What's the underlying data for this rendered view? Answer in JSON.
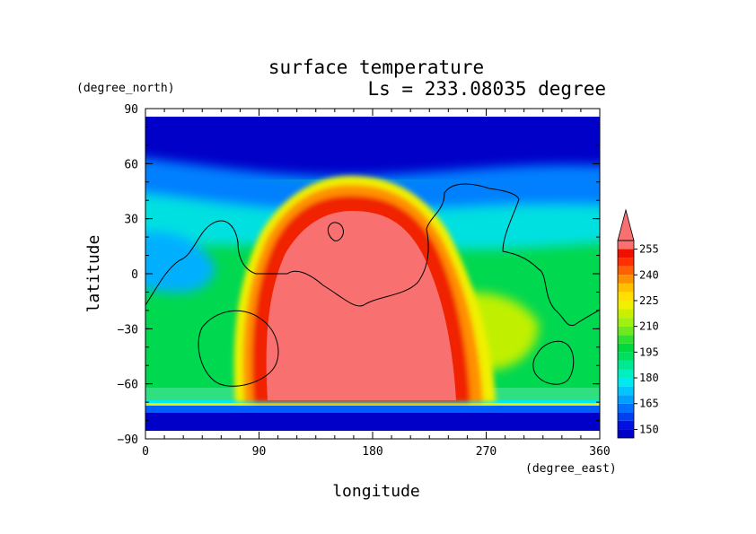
{
  "chart_data": {
    "type": "heatmap",
    "title": "surface temperature",
    "subtitle": "Ls = 233.08035 degree",
    "xlabel": "longitude",
    "ylabel": "latitude",
    "x_unit": "(degree_east)",
    "y_unit": "(degree_north)",
    "xlim": [
      0,
      360
    ],
    "ylim": [
      -90,
      90
    ],
    "x_ticks": [
      "0",
      "90",
      "180",
      "270",
      "360"
    ],
    "y_ticks": [
      "90",
      "60",
      "30",
      "0",
      "−30",
      "−60",
      "−90"
    ],
    "x_tick_values": [
      0,
      90,
      180,
      270,
      360
    ],
    "y_tick_values": [
      90,
      60,
      30,
      0,
      -30,
      -60,
      -90
    ],
    "colorbar": {
      "levels": [
        145,
        150,
        155,
        160,
        165,
        170,
        175,
        180,
        185,
        190,
        195,
        200,
        205,
        210,
        215,
        220,
        225,
        230,
        235,
        240,
        245,
        250,
        255,
        260
      ],
      "colors": [
        "#0000c8",
        "#0010e0",
        "#0040f0",
        "#0070ff",
        "#00a0ff",
        "#00c8ff",
        "#00e8f0",
        "#00f0c0",
        "#00e890",
        "#00e060",
        "#00d840",
        "#30e030",
        "#70e820",
        "#a0f010",
        "#c8f000",
        "#f0f000",
        "#ffe000",
        "#ffc000",
        "#ff9000",
        "#ff6000",
        "#ff3000",
        "#f01000",
        "#f87070"
      ],
      "labels": [
        "150",
        "165",
        "180",
        "195",
        "210",
        "225",
        "240",
        "255"
      ],
      "label_values": [
        150,
        165,
        180,
        195,
        210,
        225,
        240,
        255
      ],
      "extend": "max"
    },
    "contour": "black continent outline overlay",
    "grid": false,
    "colors": {
      "hot_plateau": "#f87070",
      "cold_cap": "#0000c8"
    }
  }
}
